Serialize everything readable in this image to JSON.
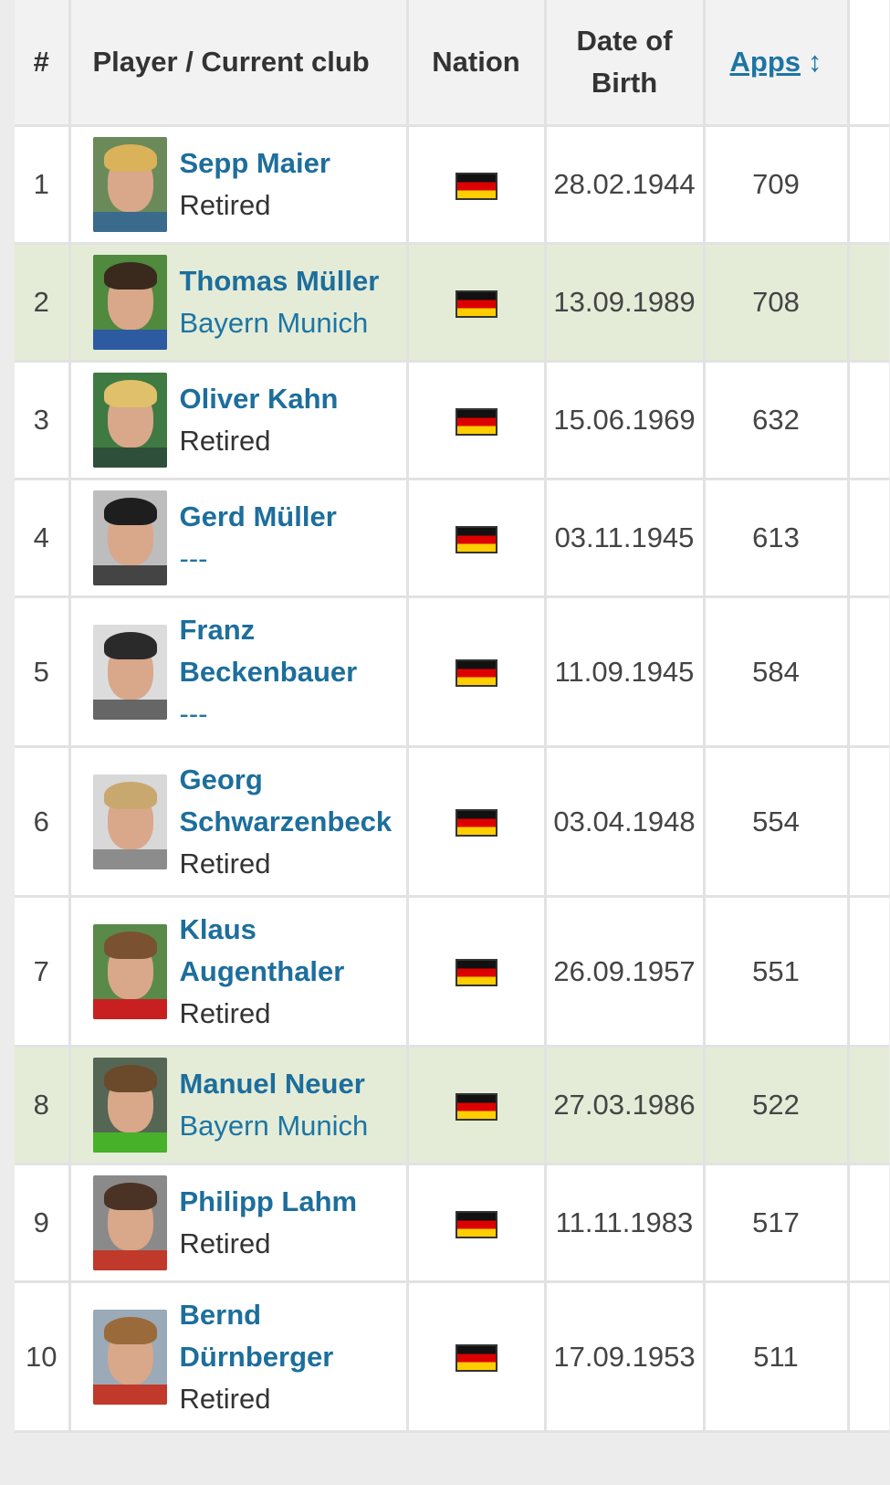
{
  "columns": {
    "rank": "#",
    "player": "Player / Current club",
    "nation": "Nation",
    "dob": "Date of Birth",
    "apps": "Apps",
    "apps_sort_icon": "↕"
  },
  "icons": {
    "flag": "germany-flag-icon",
    "sort": "sort-arrows-icon"
  },
  "colors": {
    "link_blue": "#1d6e9c",
    "highlight_row": "#e4ecd8",
    "flag": [
      "#111111",
      "#dd0000",
      "#ffce00"
    ]
  },
  "rows": [
    {
      "rank": "1",
      "name": "Sepp Maier",
      "club": "Retired",
      "club_link": false,
      "nation": "Germany",
      "dob": "28.02.1944",
      "apps": "709",
      "highlight": false
    },
    {
      "rank": "2",
      "name": "Thomas Müller",
      "club": "Bayern Munich",
      "club_link": true,
      "nation": "Germany",
      "dob": "13.09.1989",
      "apps": "708",
      "highlight": true
    },
    {
      "rank": "3",
      "name": "Oliver Kahn",
      "club": "Retired",
      "club_link": false,
      "nation": "Germany",
      "dob": "15.06.1969",
      "apps": "632",
      "highlight": false
    },
    {
      "rank": "4",
      "name": "Gerd Müller",
      "club": "---",
      "club_link": true,
      "nation": "Germany",
      "dob": "03.11.1945",
      "apps": "613",
      "highlight": false
    },
    {
      "rank": "5",
      "name": "Franz Beckenbauer",
      "club": "---",
      "club_link": true,
      "nation": "Germany",
      "dob": "11.09.1945",
      "apps": "584",
      "highlight": false
    },
    {
      "rank": "6",
      "name": "Georg Schwarzenbeck",
      "club": "Retired",
      "club_link": false,
      "nation": "Germany",
      "dob": "03.04.1948",
      "apps": "554",
      "highlight": false
    },
    {
      "rank": "7",
      "name": "Klaus Augenthaler",
      "club": "Retired",
      "club_link": false,
      "nation": "Germany",
      "dob": "26.09.1957",
      "apps": "551",
      "highlight": false
    },
    {
      "rank": "8",
      "name": "Manuel Neuer",
      "club": "Bayern Munich",
      "club_link": true,
      "nation": "Germany",
      "dob": "27.03.1986",
      "apps": "522",
      "highlight": true
    },
    {
      "rank": "9",
      "name": "Philipp Lahm",
      "club": "Retired",
      "club_link": false,
      "nation": "Germany",
      "dob": "11.11.1983",
      "apps": "517",
      "highlight": false
    },
    {
      "rank": "10",
      "name": "Bernd Dürnberger",
      "club": "Retired",
      "club_link": false,
      "nation": "Germany",
      "dob": "17.09.1953",
      "apps": "511",
      "highlight": false
    }
  ]
}
